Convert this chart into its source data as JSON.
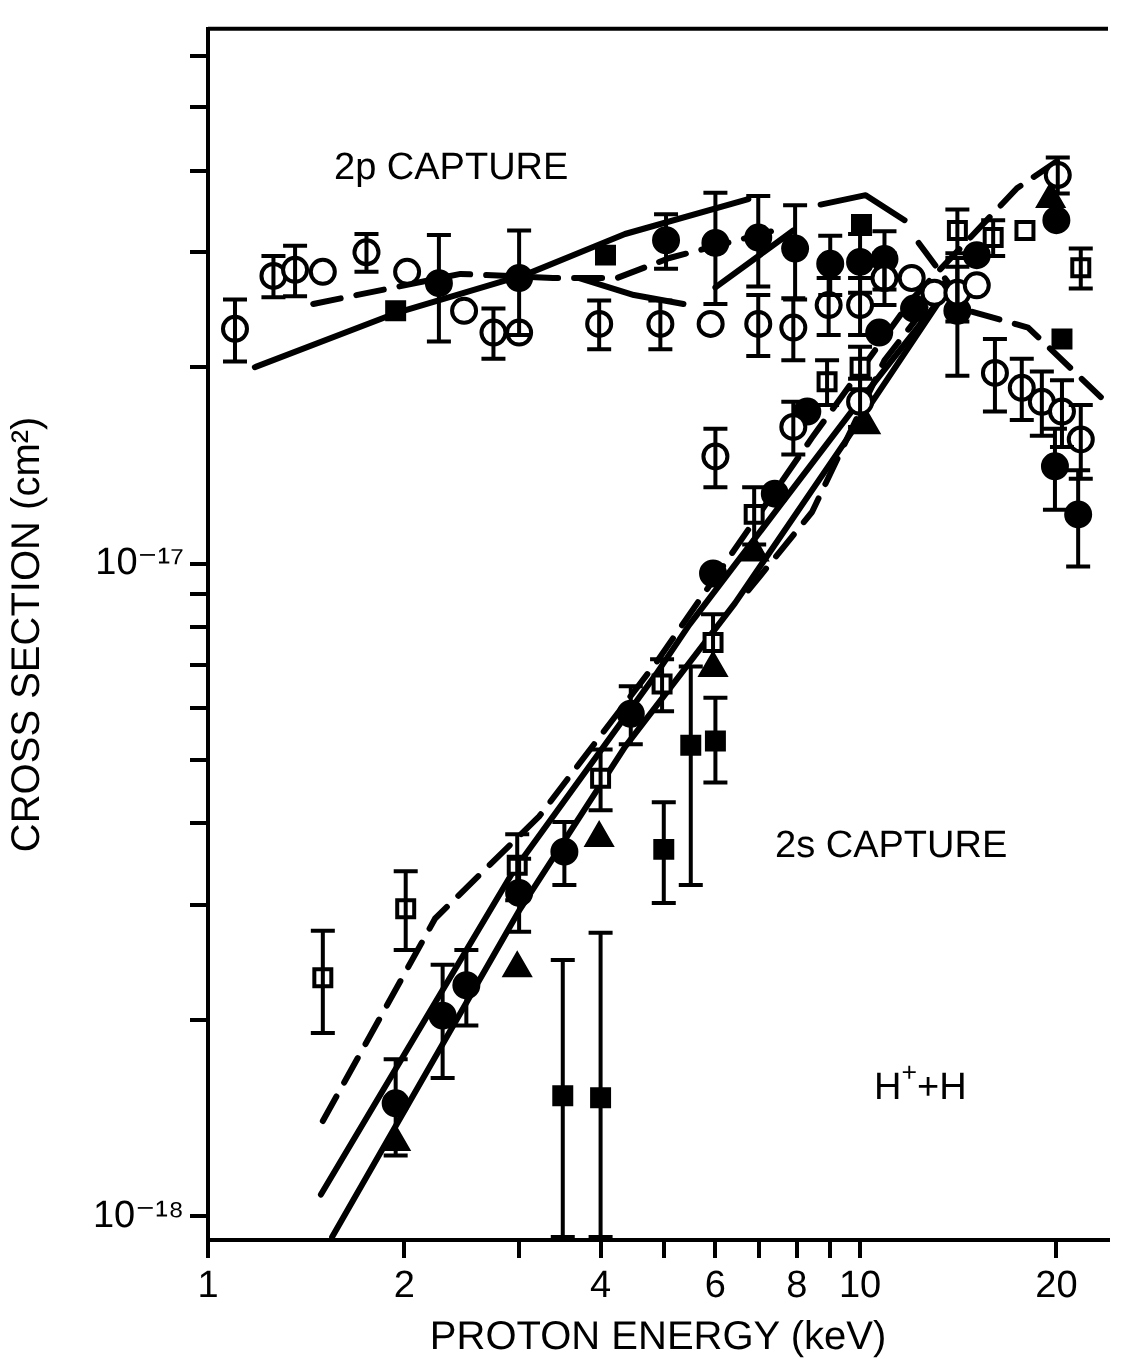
{
  "chart_data": {
    "type": "scatter",
    "xlabel": "PROTON ENERGY (keV)",
    "ylabel": "CROSS SECTION (cm²)",
    "annotations": [
      "2p CAPTURE",
      "2s CAPTURE",
      "H$^{+}$+H"
    ],
    "log": "xy",
    "grid": false,
    "legend": false,
    "xlim": [
      1,
      24
    ],
    "ylim": [
      9.2e-19,
      6.6e-17
    ],
    "xticks": [
      1,
      2,
      {
        "value": 3,
        "label": null
      },
      4,
      {
        "value": 5,
        "label": null
      },
      6,
      {
        "value": 7,
        "label": null
      },
      8,
      {
        "value": 9,
        "label": null
      },
      10,
      20
    ],
    "yticks": [
      {
        "value": 1e-18,
        "label": "10⁻¹⁸"
      },
      {
        "value": 2e-18,
        "label": null
      },
      {
        "value": 3e-18,
        "label": null
      },
      {
        "value": 4e-18,
        "label": null
      },
      {
        "value": 5e-18,
        "label": null
      },
      {
        "value": 6e-18,
        "label": null
      },
      {
        "value": 7e-18,
        "label": null
      },
      {
        "value": 8e-18,
        "label": null
      },
      {
        "value": 9e-18,
        "label": null
      },
      {
        "value": 1e-17,
        "label": "10⁻¹⁷"
      },
      {
        "value": 2e-17,
        "label": null
      },
      {
        "value": 3e-17,
        "label": null
      },
      {
        "value": 4e-17,
        "label": null
      },
      {
        "value": 5e-17,
        "label": null
      },
      {
        "value": 6e-17,
        "label": null
      }
    ],
    "series": [
      {
        "marker": "circle",
        "color": "#000000",
        "x": [
          1.1,
          1.26,
          1.36,
          1.5,
          1.75,
          2.02,
          2.47,
          2.74,
          3.0,
          3.98,
          4.94,
          5.9,
          6.98,
          7.9,
          8.95,
          10,
          10.9,
          12,
          13,
          14.1,
          15.1,
          16.1,
          17.7,
          19.0,
          20.1,
          20.4,
          21.8,
          6.0,
          7.9,
          10
        ],
        "values": [
          2.29e-17,
          2.76e-17,
          2.82e-17,
          2.8e-17,
          3e-17,
          2.8e-17,
          2.44e-17,
          2.26e-17,
          2.26e-17,
          2.33e-17,
          2.33e-17,
          2.33e-17,
          2.33e-17,
          2.3e-17,
          2.49e-17,
          2.49e-17,
          2.74e-17,
          2.74e-17,
          2.6e-17,
          2.6e-17,
          2.67e-17,
          1.96e-17,
          1.86e-17,
          1.77e-17,
          3.94e-17,
          1.71e-17,
          1.55e-17,
          1.46e-17,
          1.62e-17,
          1.77e-17
        ],
        "errors": [
          2.5e-18,
          2e-18,
          2.5e-18,
          null,
          2e-18,
          null,
          null,
          2e-18,
          null,
          2e-18,
          2e-18,
          null,
          2.5e-18,
          2.5e-18,
          2.5e-18,
          2.5e-18,
          2.5e-18,
          null,
          null,
          2.5e-18,
          null,
          2.5e-18,
          2e-18,
          2e-18,
          2.5e-18,
          2e-18,
          2e-18,
          1.5e-18,
          1.5e-18,
          1.5e-18
        ]
      },
      {
        "marker": "circle",
        "color": "#000000",
        "x": [
          2.26,
          3.0,
          5.04,
          6.0,
          6.98,
          7.95,
          9.0,
          10.0,
          10.9,
          14.1,
          15.1,
          20.0,
          19.9,
          21.6,
          1.94,
          2.29,
          2.49,
          3.0,
          3.52,
          4.45,
          5.95,
          7.4,
          8.3,
          10.7,
          12.1
        ],
        "values": [
          2.69e-17,
          2.74e-17,
          3.13e-17,
          3.1e-17,
          3.16e-17,
          3.04e-17,
          2.88e-17,
          2.9e-17,
          2.93e-17,
          2.44e-17,
          2.97e-17,
          3.36e-17,
          1.41e-17,
          1.19e-17,
          1.49e-18,
          2.03e-18,
          2.26e-18,
          3.13e-18,
          3.62e-18,
          5.89e-18,
          9.66e-18,
          1.28e-17,
          1.71e-17,
          2.26e-17,
          2.46e-17
        ],
        "errors": [
          5e-18,
          5e-18,
          3e-18,
          6e-18,
          5e-18,
          5e-18,
          3e-18,
          3e-18,
          3e-18,
          5e-18,
          null,
          null,
          2e-18,
          2e-18,
          2.5e-19,
          4e-19,
          3e-19,
          4e-19,
          4e-19,
          6e-19,
          null,
          null,
          null,
          null,
          null
        ]
      },
      {
        "marker": "square",
        "color": "#000000",
        "x": [
          1.94,
          4.07,
          10.05,
          20.4,
          3.5,
          4.0,
          5.0,
          5.5,
          6.0
        ],
        "values": [
          2.44e-17,
          2.97e-17,
          3.31e-17,
          2.21e-17,
          1.53e-18,
          1.52e-18,
          3.65e-18,
          5.27e-18,
          5.35e-18
        ],
        "errors": [
          null,
          null,
          null,
          null,
          [
            9.3e-19,
            2.47e-18
          ],
          [
            9.3e-19,
            2.72e-18
          ],
          [
            3.02e-18,
            4.31e-18
          ],
          [
            3.22e-18,
            6.96e-18
          ],
          [
            4.62e-18,
            6.23e-18
          ]
        ]
      },
      {
        "marker": "square",
        "color": "#000000",
        "x": [
          1.5,
          2.01,
          2.98,
          4.0,
          4.97,
          5.95,
          6.88,
          8.9,
          10,
          14.1,
          16.0,
          17.9,
          21.8
        ],
        "values": [
          2.32e-18,
          2.96e-18,
          3.45e-18,
          4.69e-18,
          6.54e-18,
          7.57e-18,
          1.19e-17,
          1.9e-17,
          2e-17,
          3.24e-17,
          3.16e-17,
          3.24e-17,
          2.84e-17
        ],
        "errors": [
          [
            1.91e-18,
            2.74e-18
          ],
          [
            2.56e-18,
            3.38e-18
          ],
          4e-19,
          5e-19,
          6e-19,
          8e-19,
          1.2e-18,
          1.5e-18,
          1.5e-18,
          2.5e-18,
          2e-18,
          null,
          2e-18
        ]
      },
      {
        "marker": "triangle",
        "color": "#000000",
        "x": [
          1.94,
          2.98,
          3.98,
          5.95,
          6.88,
          10.2,
          19.6
        ],
        "values": [
          1.3e-18,
          2.4e-18,
          3.8e-18,
          6.92e-18,
          1.04e-17,
          1.63e-17,
          3.62e-17
        ]
      },
      {
        "type": "line",
        "line_style": "solid",
        "color": "#000000",
        "x": [
          1.18,
          1.94,
          3.09,
          4.36,
          6.74
        ],
        "values": [
          2e-17,
          2.42e-17,
          2.78e-17,
          3.2e-17,
          3.62e-17
        ]
      },
      {
        "type": "line",
        "line_style": "dashed",
        "color": "#000000",
        "x": [
          1.45,
          2.44,
          3.38,
          4.24,
          5.1,
          7.4
        ],
        "values": [
          2.5e-17,
          2.78e-17,
          2.74e-17,
          2.74e-17,
          2.94e-17,
          3.24e-17
        ]
      },
      {
        "type": "line",
        "line_style": "solid",
        "color": "#000000",
        "x": [
          6.0,
          7.9
        ],
        "values": [
          2.65e-17,
          3.24e-17
        ]
      },
      {
        "type": "line",
        "line_style": "solid",
        "color": "#000000",
        "x": [
          8.7,
          10.2,
          11.7
        ],
        "values": [
          3.55e-17,
          3.67e-17,
          3.36e-17
        ]
      },
      {
        "type": "line",
        "line_style": "solid",
        "color": "#000000",
        "x": [
          3.7,
          4.5,
          5.36
        ],
        "values": [
          2.74e-17,
          2.58e-17,
          2.5e-17
        ]
      },
      {
        "type": "line",
        "line_style": "solid",
        "color": "#000000",
        "x": [
          1.49,
          2.94,
          4.87,
          5.47,
          9.7,
          13.7
        ],
        "values": [
          1.08e-18,
          3.38e-18,
          6.78e-18,
          8.06e-18,
          1.71e-17,
          2.65e-17
        ]
      },
      {
        "type": "line",
        "line_style": "solid",
        "color": "#000000",
        "x": [
          1.55,
          3.0,
          4.36,
          6.43,
          10.2,
          13.5
        ],
        "values": [
          9.3e-19,
          2.94e-18,
          5.24e-18,
          8.7e-18,
          1.71e-17,
          2.6e-17
        ]
      },
      {
        "type": "line",
        "line_style": "dashed",
        "color": "#000000",
        "x": [
          1.5,
          2.23,
          3.22,
          4.87,
          8.44,
          12.0,
          17.4,
          20.5
        ],
        "values": [
          1.4e-18,
          2.86e-18,
          4.1e-18,
          7.06e-18,
          1.56e-17,
          2.54e-17,
          3.76e-17,
          4.2e-17
        ]
      },
      {
        "type": "line",
        "line_style": "dashed",
        "color": "#000000",
        "x": [
          12.3,
          14.7,
          18.1,
          23.4
        ],
        "values": [
          3.1e-17,
          2.44e-17,
          2.3e-17,
          1.8e-17
        ]
      },
      {
        "type": "line",
        "line_style": "dashed",
        "color": "#000000",
        "x": [
          6.74,
          8.44,
          10.9,
          13.5
        ],
        "values": [
          9.1e-18,
          1.2e-17,
          2.05e-17,
          2.7e-17
        ]
      }
    ]
  }
}
